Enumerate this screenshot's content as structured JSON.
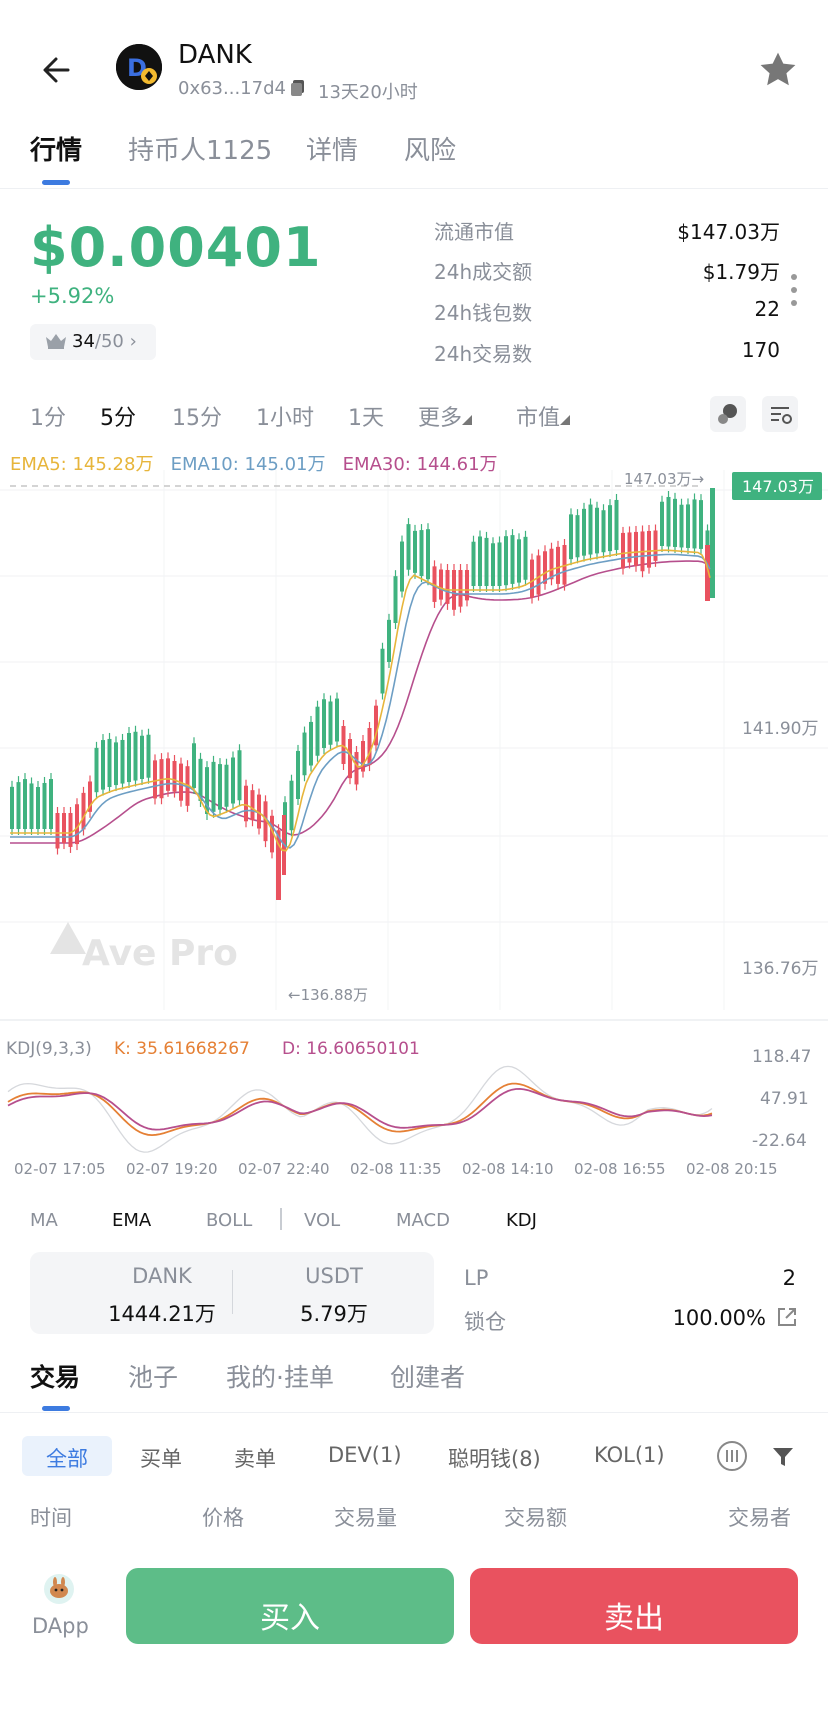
{
  "header": {
    "token_name": "DANK",
    "address": "0x63...17d4",
    "age": "13天20小时",
    "back_icon": "arrow-left-icon",
    "star_icon": "star-icon"
  },
  "tabs": [
    {
      "label": "行情"
    },
    {
      "label": "持币人1125"
    },
    {
      "label": "详情"
    },
    {
      "label": "风险"
    }
  ],
  "price": {
    "value": "$0.00401",
    "change": "+5.92%",
    "rank": "34",
    "rank_total": "/50",
    "rank_chevron": "›"
  },
  "stats": [
    {
      "label": "流通市值",
      "value": "$147.03万"
    },
    {
      "label": "24h成交额",
      "value": "$1.79万"
    },
    {
      "label": "24h钱包数",
      "value": "22"
    },
    {
      "label": "24h交易数",
      "value": "170"
    }
  ],
  "timeframes": [
    {
      "label": "1分"
    },
    {
      "label": "5分"
    },
    {
      "label": "15分"
    },
    {
      "label": "1小时"
    },
    {
      "label": "1天"
    },
    {
      "label": "更多"
    },
    {
      "label": "市值"
    }
  ],
  "ema": {
    "ema5": "EMA5: 145.28万",
    "ema10": "EMA10: 145.01万",
    "ema30": "EMA30: 144.61万"
  },
  "chart_labels": {
    "last_line": "147.03万→",
    "last_badge": "147.03万",
    "y_mid": "141.90万",
    "y_low": "136.76万",
    "min_mark": "←136.88万",
    "watermark": "Ave Pro"
  },
  "kdj": {
    "title": "KDJ(9,3,3)",
    "k": "K: 35.61668267",
    "d": "D: 16.60650101",
    "y_top": "118.47",
    "y_mid": "47.91",
    "y_bot": "-22.64"
  },
  "x_ticks": [
    "02-07 17:05",
    "02-07 19:20",
    "02-07 22:40",
    "02-08 11:35",
    "02-08 14:10",
    "02-08 16:55",
    "02-08 20:15"
  ],
  "indicators": [
    {
      "label": "MA"
    },
    {
      "label": "EMA"
    },
    {
      "label": "BOLL"
    },
    {
      "label": "VOL"
    },
    {
      "label": "MACD"
    },
    {
      "label": "KDJ"
    }
  ],
  "pool": {
    "token_label": "DANK",
    "token_amount": "1444.21万",
    "quote_label": "USDT",
    "quote_amount": "5.79万",
    "lp_label": "LP",
    "lp_value": "2",
    "lock_label": "锁仓",
    "lock_value": "100.00%"
  },
  "trade_tabs": [
    {
      "label": "交易"
    },
    {
      "label": "池子"
    },
    {
      "label": "我的·挂单"
    },
    {
      "label": "创建者"
    }
  ],
  "filters": [
    {
      "label": "全部"
    },
    {
      "label": "买单"
    },
    {
      "label": "卖单"
    },
    {
      "label": "DEV(1)"
    },
    {
      "label": "聪明钱(8)"
    },
    {
      "label": "KOL(1)"
    }
  ],
  "table_headers": [
    "时间",
    "价格",
    "交易量",
    "交易额",
    "交易者"
  ],
  "bottom": {
    "dapp_label": "DApp",
    "buy_label": "买入",
    "sell_label": "卖出"
  },
  "colors": {
    "up": "#3fb27f",
    "down": "#e9525f",
    "accent": "#3d7be0",
    "ema5": "#e7b53b",
    "ema10": "#6d9ec4",
    "ema30": "#b64f8d"
  }
}
